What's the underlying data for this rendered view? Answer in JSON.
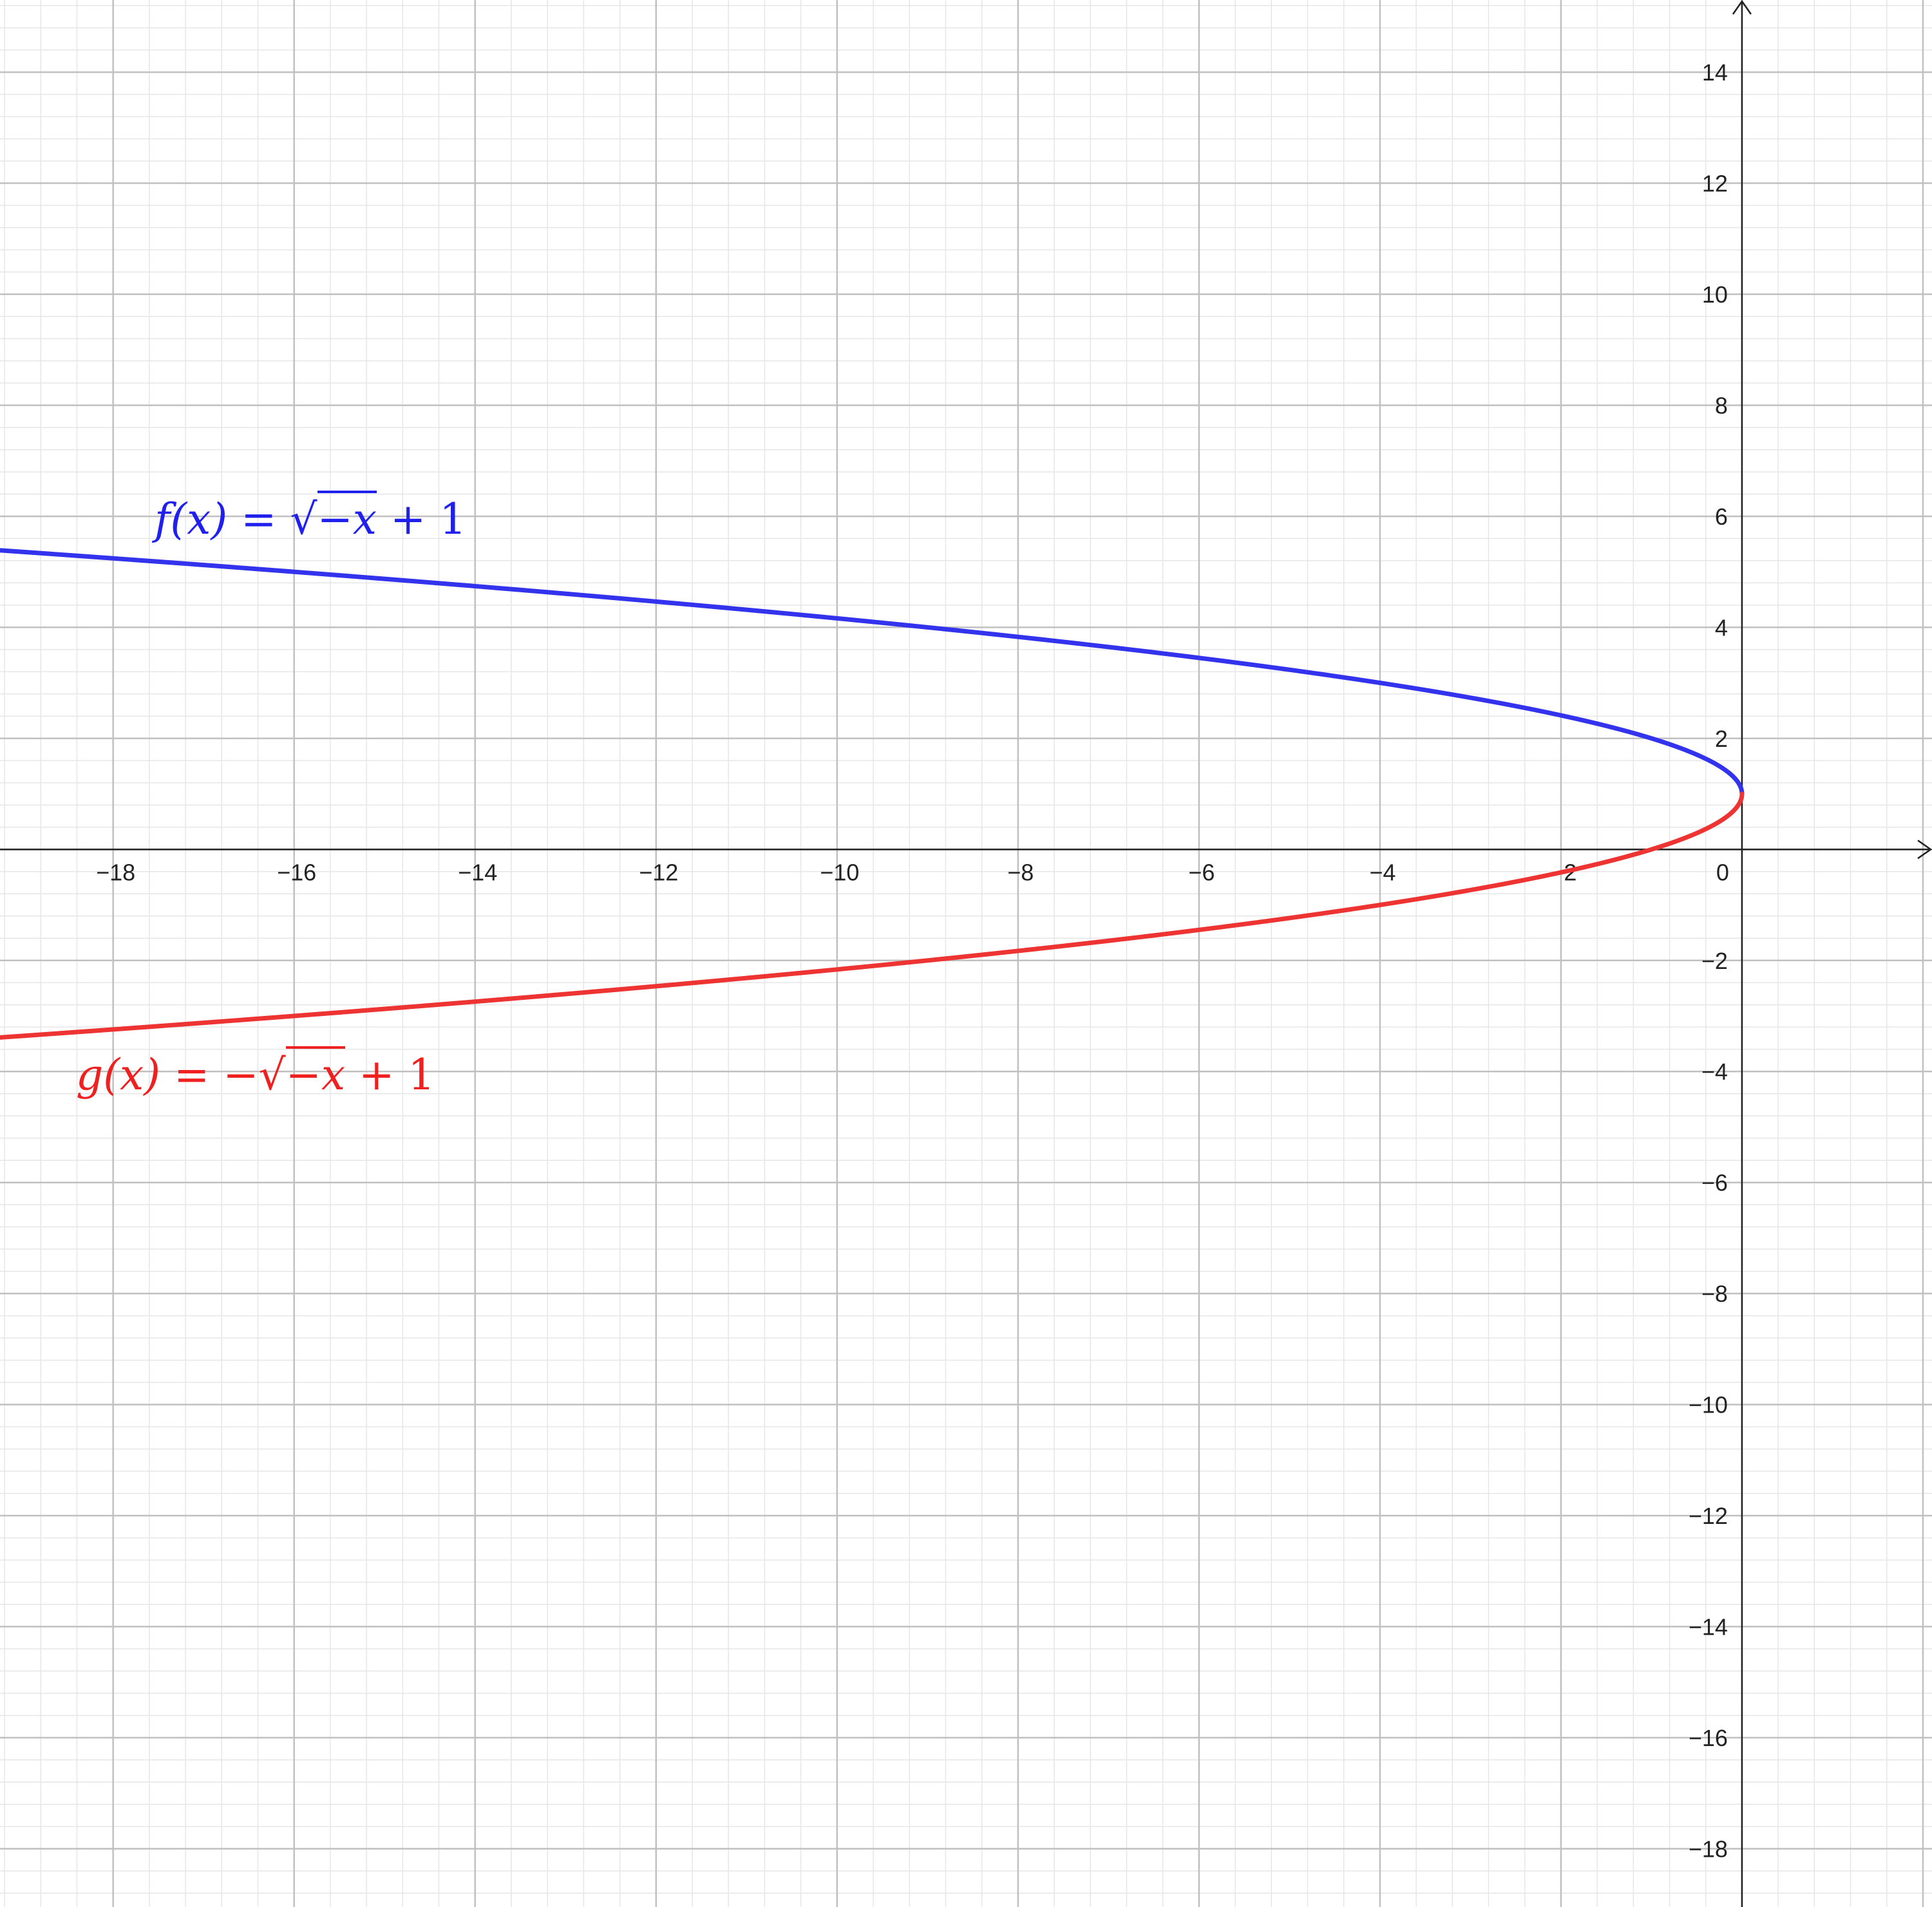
{
  "chart_data": {
    "type": "line",
    "xlim": [
      -19.25,
      2.1
    ],
    "ylim": [
      -19.05,
      15.3
    ],
    "grid": true,
    "minor_grid": true,
    "x_ticks": [
      -18,
      -16,
      -14,
      -12,
      -10,
      -8,
      -6,
      -4,
      -2,
      0
    ],
    "y_ticks": [
      14,
      12,
      10,
      8,
      6,
      4,
      2,
      -2,
      -4,
      -6,
      -8,
      -10,
      -12,
      -14,
      -16,
      -18
    ],
    "tick_labels": {
      "x": [
        "−18",
        "−16",
        "−14",
        "−12",
        "−10",
        "−8",
        "−6",
        "−4",
        "−2",
        "0"
      ],
      "y": [
        "14",
        "12",
        "10",
        "8",
        "6",
        "4",
        "2",
        "−2",
        "−4",
        "−6",
        "−8",
        "−10",
        "−12",
        "−14",
        "−16",
        "−18"
      ]
    },
    "series": [
      {
        "name": "f(x) = √−x + 1",
        "expression": "sqrt(-x) + 1",
        "color": "#3333ee",
        "x": [
          -19.25,
          -16,
          -12,
          -8,
          -4,
          -2,
          -1,
          0
        ],
        "y": [
          5.39,
          5.0,
          4.46,
          3.83,
          3.0,
          2.41,
          2.0,
          1.0
        ]
      },
      {
        "name": "g(x) = −√−x + 1",
        "expression": "-sqrt(-x) + 1",
        "color": "#ee3333",
        "x": [
          -19.25,
          -16,
          -12,
          -8,
          -4,
          -2,
          -1,
          0
        ],
        "y": [
          -3.39,
          -3.0,
          -2.46,
          -1.83,
          -1.0,
          -0.41,
          0.0,
          1.0
        ]
      }
    ],
    "labels": {
      "f": {
        "name": "f(x)",
        "eq": "=",
        "radicand": "−x",
        "tail": "+ 1",
        "color": "#2020ee"
      },
      "g": {
        "name": "g(x)",
        "eq": "=",
        "sign": "−",
        "radicand": "−x",
        "tail": "+ 1",
        "color": "#ee2020"
      }
    }
  }
}
